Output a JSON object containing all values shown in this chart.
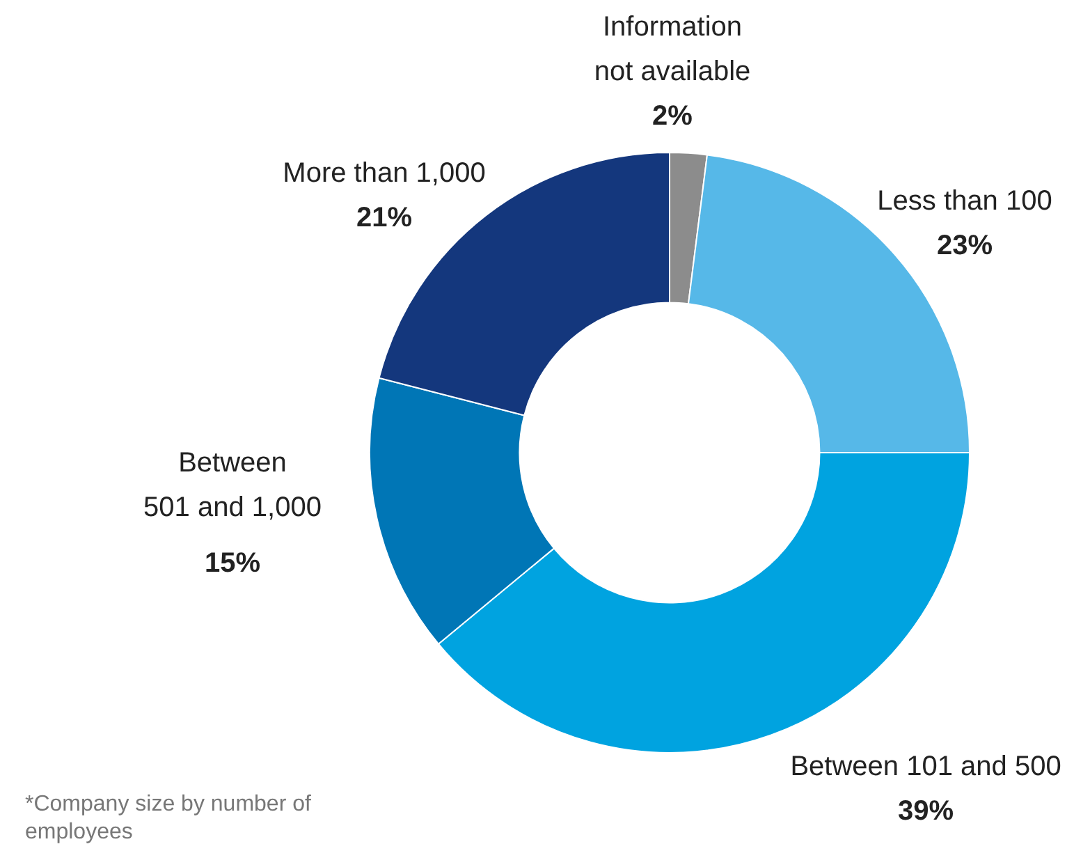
{
  "chart_data": {
    "type": "donut",
    "categories": [
      "Information not available",
      "Less than 100",
      "Between 101 and 500",
      "Between 501 and 1,000",
      "More than 1,000"
    ],
    "values": [
      2,
      23,
      39,
      15,
      21
    ],
    "colors": [
      "#8c8c8c",
      "#56b8e8",
      "#00a3e0",
      "#0076b6",
      "#14377d"
    ],
    "value_labels": [
      "2%",
      "23%",
      "39%",
      "15%",
      "21%"
    ],
    "annotations": [
      "*Company size by number of employees"
    ],
    "legend": false
  }
}
